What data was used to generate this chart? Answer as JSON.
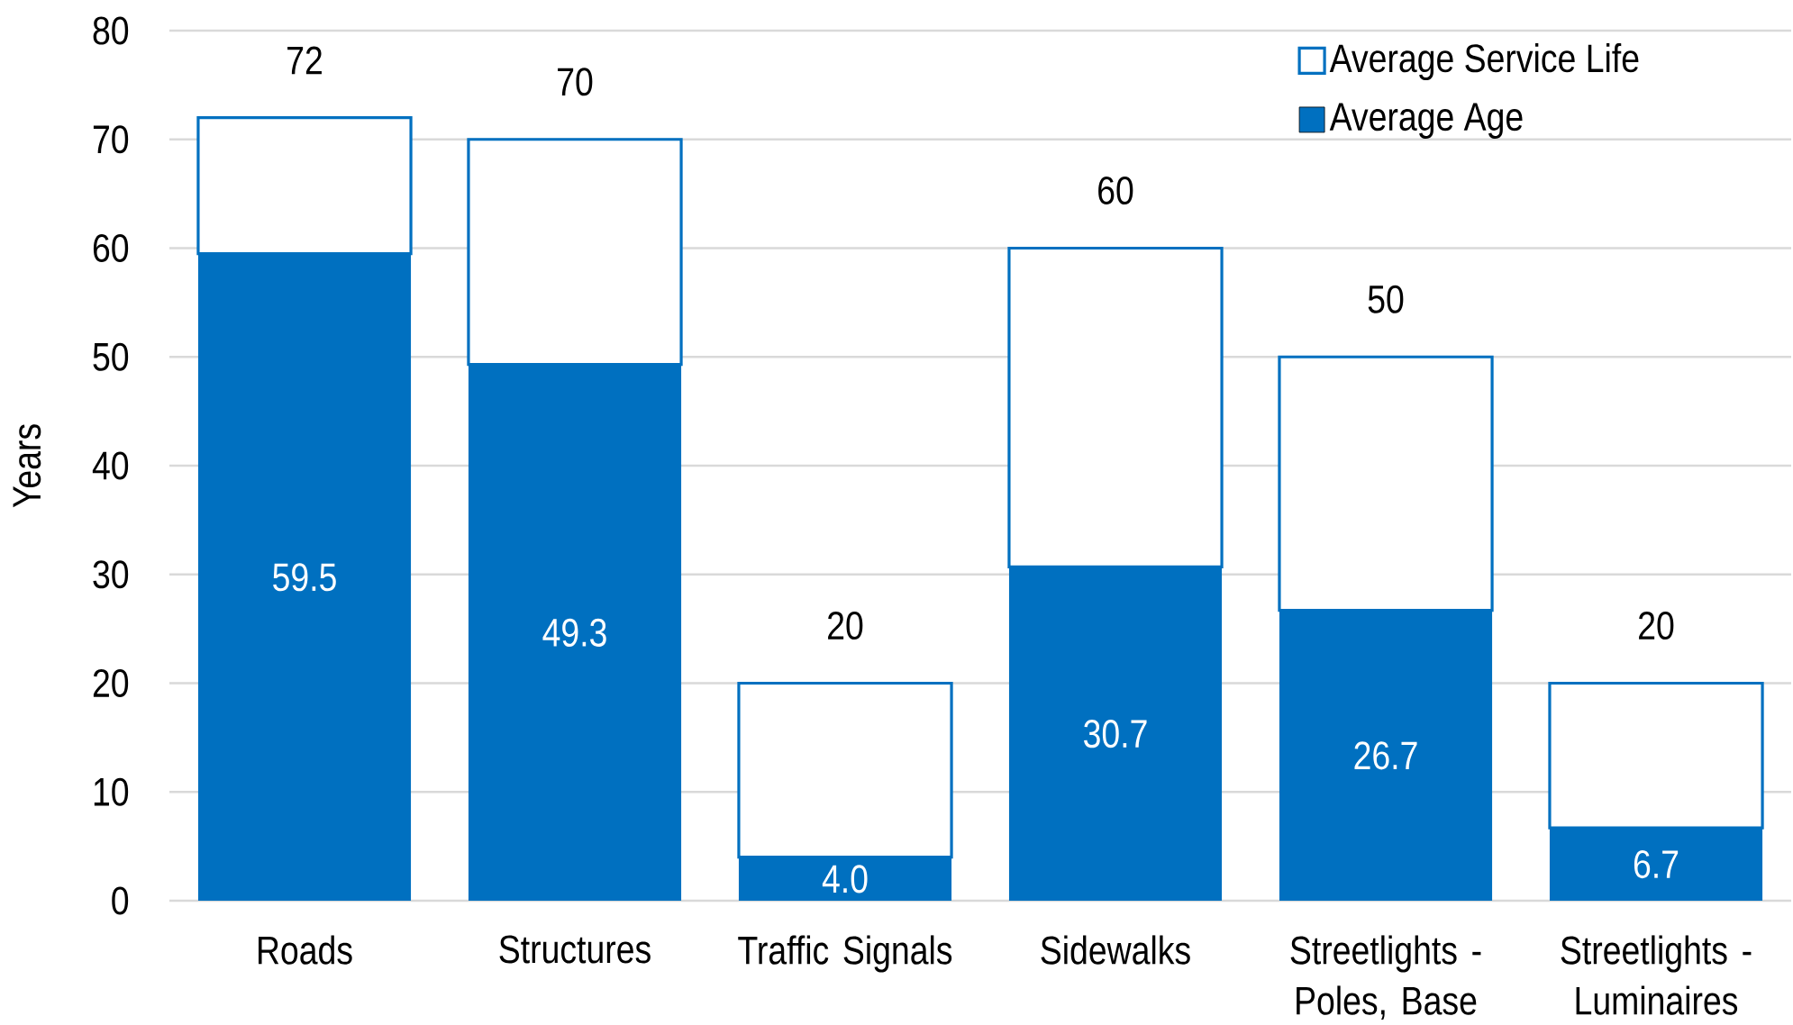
{
  "chart_data": {
    "type": "bar",
    "ylabel": "Years",
    "stacked": true,
    "categories": [
      "Roads",
      "Structures",
      "Traffic Signals",
      "Sidewalks",
      "Streetlights - Poles, Base",
      "Streetlights - Luminaires"
    ],
    "series": [
      {
        "name": "Average Age",
        "color": "#0070c0",
        "values": [
          59.5,
          49.3,
          4.0,
          30.7,
          26.7,
          6.7
        ],
        "value_labels": [
          "59.5",
          "49.3",
          "4.0",
          "30.7",
          "26.7",
          "6.7"
        ]
      },
      {
        "name": "Average Service Life",
        "color": "#ffffff",
        "values": [
          12.5,
          20.7,
          16.0,
          29.3,
          23.3,
          13.3
        ]
      }
    ],
    "totals": [
      "72",
      "70",
      "20",
      "60",
      "50",
      "20"
    ],
    "ylim": [
      0,
      80
    ],
    "yticks": [
      0,
      10,
      20,
      30,
      40,
      50,
      60,
      70,
      80
    ],
    "grid": "y",
    "legend": "top right"
  }
}
